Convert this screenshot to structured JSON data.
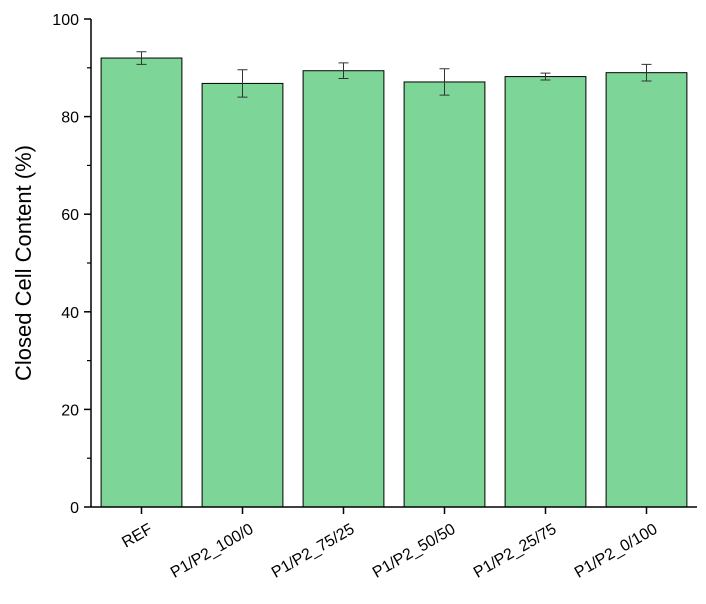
{
  "chart_data": {
    "type": "bar",
    "title": "",
    "xlabel": "",
    "ylabel": "Closed Cell Content (%)",
    "ylim": [
      0,
      100
    ],
    "yticks": [
      0,
      20,
      40,
      60,
      80,
      100
    ],
    "categories": [
      "REF",
      "P1/P2_100/0",
      "P1/P2_75/25",
      "P1/P2_50/50",
      "P1/P2_25/75",
      "P1/P2_0/100"
    ],
    "values": [
      92.0,
      86.8,
      89.4,
      87.1,
      88.2,
      89.0
    ],
    "errors": [
      1.3,
      2.8,
      1.6,
      2.7,
      0.7,
      1.7
    ],
    "bar_color": "#7dd698",
    "edge_color": "#000000",
    "error_bar_color": "#333333",
    "grid": false,
    "legend": "none"
  }
}
